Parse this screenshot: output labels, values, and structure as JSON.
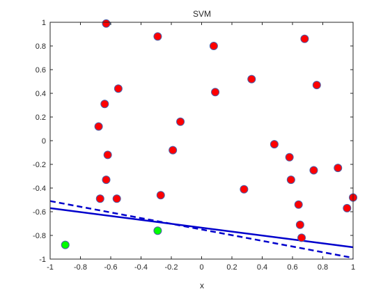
{
  "chart_data": {
    "type": "scatter",
    "title": "SVM",
    "xlabel": "x",
    "ylabel": "",
    "xlim": [
      -1,
      1
    ],
    "ylim": [
      -1,
      1
    ],
    "x_ticks": [
      -1,
      -0.8,
      -0.6,
      -0.4,
      -0.2,
      0,
      0.2,
      0.4,
      0.6,
      0.8,
      1
    ],
    "y_ticks": [
      -1,
      -0.8,
      -0.6,
      -0.4,
      -0.2,
      0,
      0.2,
      0.4,
      0.6,
      0.8,
      1
    ],
    "x_tick_labels": [
      "-1",
      "-0.8",
      "-0.6",
      "-0.4",
      "-0.2",
      "0",
      "0.2",
      "0.4",
      "0.6",
      "0.8",
      "1"
    ],
    "y_tick_labels": [
      "-1",
      "-0.8",
      "-0.6",
      "-0.4",
      "-0.2",
      "0",
      "0.2",
      "0.4",
      "0.6",
      "0.8",
      "1"
    ],
    "grid": false,
    "legend": "none",
    "series": [
      {
        "color": "#ff0000",
        "edge_color": "#4a5da8",
        "marker": "circle",
        "points": [
          [
            -0.63,
            0.99
          ],
          [
            -0.29,
            0.88
          ],
          [
            0.08,
            0.8
          ],
          [
            0.68,
            0.86
          ],
          [
            0.33,
            0.52
          ],
          [
            0.09,
            0.41
          ],
          [
            0.76,
            0.47
          ],
          [
            -0.55,
            0.44
          ],
          [
            -0.64,
            0.31
          ],
          [
            -0.68,
            0.12
          ],
          [
            -0.14,
            0.16
          ],
          [
            0.48,
            -0.03
          ],
          [
            -0.19,
            -0.08
          ],
          [
            -0.62,
            -0.12
          ],
          [
            0.58,
            -0.14
          ],
          [
            0.74,
            -0.25
          ],
          [
            0.9,
            -0.23
          ],
          [
            -0.63,
            -0.33
          ],
          [
            0.59,
            -0.33
          ],
          [
            0.28,
            -0.41
          ],
          [
            -0.67,
            -0.49
          ],
          [
            -0.56,
            -0.49
          ],
          [
            -0.27,
            -0.46
          ],
          [
            0.64,
            -0.54
          ],
          [
            0.96,
            -0.57
          ],
          [
            1.0,
            -0.48
          ],
          [
            0.65,
            -0.71
          ],
          [
            0.66,
            -0.82
          ]
        ]
      },
      {
        "color": "#00ff00",
        "edge_color": "#4a5da8",
        "marker": "circle",
        "points": [
          [
            -0.9,
            -0.88
          ],
          [
            -0.29,
            -0.76
          ]
        ]
      }
    ],
    "lines": [
      {
        "style": "solid",
        "color": "#0000cc",
        "points": [
          [
            -1,
            -0.57
          ],
          [
            1,
            -0.9
          ]
        ]
      },
      {
        "style": "dashed",
        "color": "#0000cc",
        "points": [
          [
            -1,
            -0.51
          ],
          [
            1,
            -0.99
          ]
        ]
      }
    ]
  }
}
